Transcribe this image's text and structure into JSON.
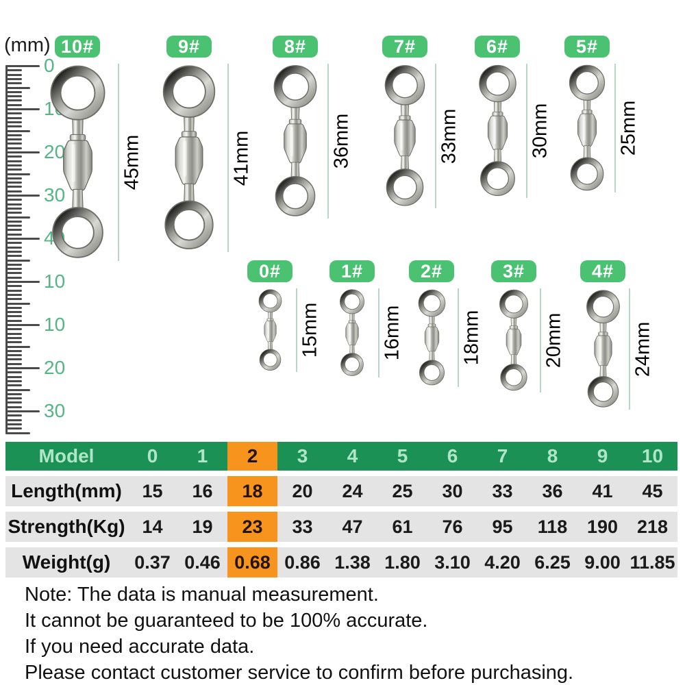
{
  "ruler": {
    "unit_label": "(mm)",
    "labels": [
      "0",
      "10",
      "20",
      "30",
      "40",
      "10",
      "10",
      "20",
      "30"
    ]
  },
  "swivels": {
    "row1": [
      {
        "model": "10#",
        "length_label": "45mm",
        "length_mm": 45
      },
      {
        "model": "9#",
        "length_label": "41mm",
        "length_mm": 41
      },
      {
        "model": "8#",
        "length_label": "36mm",
        "length_mm": 36
      },
      {
        "model": "7#",
        "length_label": "33mm",
        "length_mm": 33
      },
      {
        "model": "6#",
        "length_label": "30mm",
        "length_mm": 30
      },
      {
        "model": "5#",
        "length_label": "25mm",
        "length_mm": 25
      }
    ],
    "row2": [
      {
        "model": "0#",
        "length_label": "15mm",
        "length_mm": 15
      },
      {
        "model": "1#",
        "length_label": "16mm",
        "length_mm": 16
      },
      {
        "model": "2#",
        "length_label": "18mm",
        "length_mm": 18
      },
      {
        "model": "3#",
        "length_label": "20mm",
        "length_mm": 20
      },
      {
        "model": "4#",
        "length_label": "24mm",
        "length_mm": 24
      }
    ]
  },
  "table": {
    "header_label": "Model",
    "columns": [
      "0",
      "1",
      "2",
      "3",
      "4",
      "5",
      "6",
      "7",
      "8",
      "9",
      "10"
    ],
    "highlighted_column": "2",
    "rows": [
      {
        "label": "Length(mm)",
        "values": [
          "15",
          "16",
          "18",
          "20",
          "24",
          "25",
          "30",
          "33",
          "36",
          "41",
          "45"
        ]
      },
      {
        "label": "Strength(Kg)",
        "values": [
          "14",
          "19",
          "23",
          "33",
          "47",
          "61",
          "76",
          "95",
          "118",
          "190",
          "218"
        ]
      },
      {
        "label": "Weight(g)",
        "values": [
          "0.37",
          "0.46",
          "0.68",
          "0.86",
          "1.38",
          "1.80",
          "3.10",
          "4.20",
          "6.25",
          "9.00",
          "11.85"
        ]
      }
    ]
  },
  "note": {
    "lines": [
      "Note: The data is manual measurement.",
      "It cannot be guaranteed to be 100% accurate.",
      "If you need accurate data.",
      "Please contact customer service to confirm before purchasing."
    ]
  },
  "colors": {
    "badge_green": "#4bc272",
    "table_header_green": "#1b9155",
    "table_header_text": "#aee6c6",
    "highlight_orange": "#f7941e",
    "row_gray": "#e4e4e4",
    "ruler_label_green": "#55b585",
    "measure_line_green": "#b9d6c6"
  }
}
